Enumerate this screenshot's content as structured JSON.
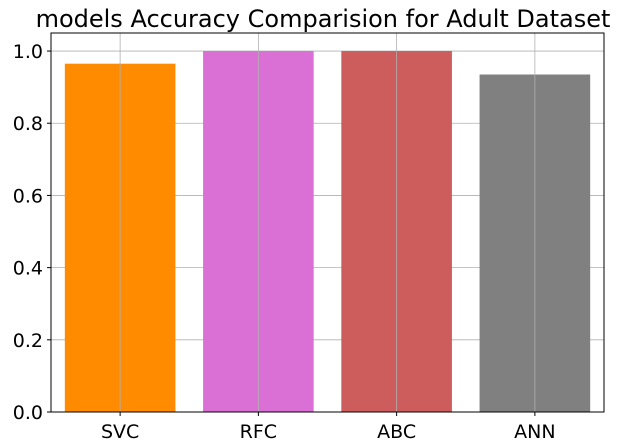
{
  "chart_data": {
    "type": "bar",
    "title": "models Accuracy Comparision for Adult Dataset",
    "categories": [
      "SVC",
      "RFC",
      "ABC",
      "ANN"
    ],
    "values": [
      0.965,
      1.0,
      1.0,
      0.935
    ],
    "colors": [
      "#ff8c00",
      "#da70d6",
      "#cd5c5c",
      "#808080"
    ],
    "xlabel": "",
    "ylabel": "",
    "ylim": [
      0,
      1.05
    ],
    "yticks": [
      0.0,
      0.2,
      0.4,
      0.6,
      0.8,
      1.0
    ],
    "ytick_labels": [
      "0.0",
      "0.2",
      "0.4",
      "0.6",
      "0.8",
      "1.0"
    ],
    "grid": true
  }
}
